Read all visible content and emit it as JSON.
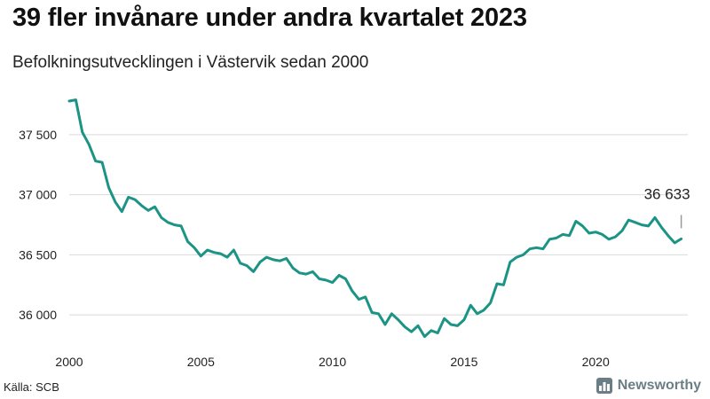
{
  "title": "39 fler invånare under andra kvartalet 2023",
  "subtitle": "Befolkningsutvecklingen i Västervik sedan 2000",
  "source": "Källa: SCB",
  "brand": {
    "name": "Newsworthy",
    "icon": "bar-chart-icon",
    "color": "#6b7e86"
  },
  "colors": {
    "line": "#1b9485",
    "grid": "#d9d9d9",
    "annotation": "#999999"
  },
  "chart_data": {
    "type": "line",
    "title": "39 fler invånare under andra kvartalet 2023",
    "subtitle": "Befolkningsutvecklingen i Västervik sedan 2000",
    "xlim": [
      2000,
      2023.5
    ],
    "ylim": [
      35780,
      37920
    ],
    "x_ticks": [
      {
        "value": 2000,
        "label": "2000"
      },
      {
        "value": 2005,
        "label": "2005"
      },
      {
        "value": 2010,
        "label": "2010"
      },
      {
        "value": 2015,
        "label": "2015"
      },
      {
        "value": 2020,
        "label": "2020"
      }
    ],
    "y_ticks": [
      {
        "value": 36000,
        "label": "36 000"
      },
      {
        "value": 36500,
        "label": "36 500"
      },
      {
        "value": 37000,
        "label": "37 000"
      },
      {
        "value": 37500,
        "label": "37 500"
      }
    ],
    "grid": true,
    "series": [
      {
        "x": [
          2000.0,
          2000.25,
          2000.5,
          2000.75,
          2001.0,
          2001.25,
          2001.5,
          2001.75,
          2002.0,
          2002.25,
          2002.5,
          2002.75,
          2003.0,
          2003.25,
          2003.5,
          2003.75,
          2004.0,
          2004.25,
          2004.5,
          2004.75,
          2005.0,
          2005.25,
          2005.5,
          2005.75,
          2006.0,
          2006.25,
          2006.5,
          2006.75,
          2007.0,
          2007.25,
          2007.5,
          2007.75,
          2008.0,
          2008.25,
          2008.5,
          2008.75,
          2009.0,
          2009.25,
          2009.5,
          2009.75,
          2010.0,
          2010.25,
          2010.5,
          2010.75,
          2011.0,
          2011.25,
          2011.5,
          2011.75,
          2012.0,
          2012.25,
          2012.5,
          2012.75,
          2013.0,
          2013.25,
          2013.5,
          2013.75,
          2014.0,
          2014.25,
          2014.5,
          2014.75,
          2015.0,
          2015.25,
          2015.5,
          2015.75,
          2016.0,
          2016.25,
          2016.5,
          2016.75,
          2017.0,
          2017.25,
          2017.5,
          2017.75,
          2018.0,
          2018.25,
          2018.5,
          2018.75,
          2019.0,
          2019.25,
          2019.5,
          2019.75,
          2020.0,
          2020.25,
          2020.5,
          2020.75,
          2021.0,
          2021.25,
          2021.5,
          2021.75,
          2022.0,
          2022.25,
          2022.5,
          2022.75,
          2023.0,
          2023.25
        ],
        "values": [
          37780,
          37790,
          37520,
          37420,
          37280,
          37270,
          37060,
          36940,
          36860,
          36980,
          36960,
          36910,
          36870,
          36900,
          36810,
          36770,
          36750,
          36740,
          36610,
          36560,
          36490,
          36540,
          36520,
          36510,
          36480,
          36540,
          36430,
          36410,
          36360,
          36440,
          36480,
          36460,
          36450,
          36470,
          36390,
          36350,
          36340,
          36360,
          36300,
          36290,
          36270,
          36330,
          36300,
          36200,
          36130,
          36150,
          36020,
          36010,
          35920,
          36010,
          35960,
          35900,
          35860,
          35910,
          35820,
          35870,
          35850,
          35970,
          35920,
          35910,
          35960,
          36080,
          36010,
          36040,
          36100,
          36260,
          36250,
          36440,
          36480,
          36500,
          36550,
          36560,
          36550,
          36630,
          36640,
          36670,
          36660,
          36780,
          36740,
          36680,
          36690,
          36670,
          36630,
          36650,
          36700,
          36790,
          36770,
          36750,
          36740,
          36810,
          36730,
          36660,
          36600,
          36633
        ]
      }
    ],
    "annotations": [
      {
        "text": "36 633",
        "x": 2023.25,
        "y": 36633
      }
    ]
  }
}
